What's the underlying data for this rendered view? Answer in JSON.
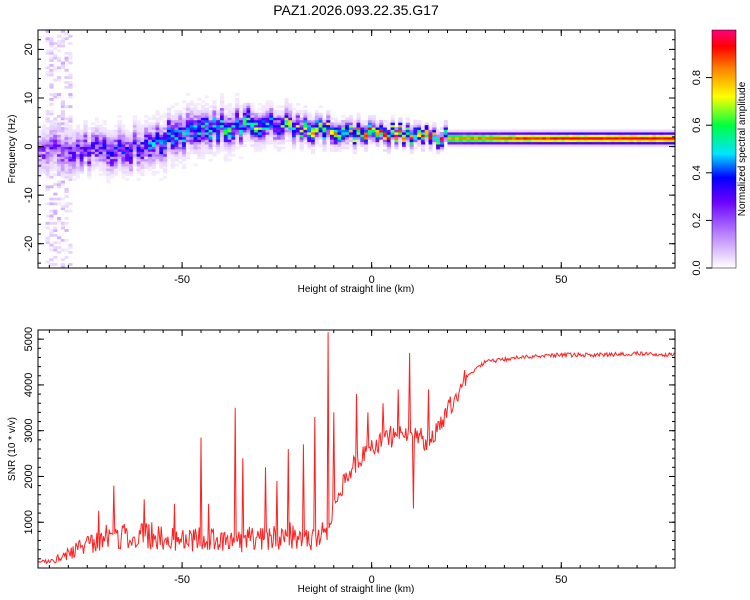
{
  "chart_data": [
    {
      "type": "heatmap",
      "title": "PAZ1.2026.093.22.35.G17",
      "xlabel": "Height of straight line (km)",
      "ylabel": "Frequency (Hz)",
      "xlim": [
        -88,
        80
      ],
      "ylim": [
        -25,
        24
      ],
      "x_ticks": [
        -50,
        0,
        50
      ],
      "x_tick_labels": [
        "-50",
        "0",
        "50"
      ],
      "y_ticks": [
        -20,
        -10,
        0,
        10,
        20
      ],
      "y_tick_labels": [
        "-20",
        "-10",
        "0",
        "10",
        "20"
      ],
      "colorbar": {
        "label": "Normalized spectral amplitude",
        "range": [
          0,
          1
        ],
        "ticks": [
          0.0,
          0.2,
          0.4,
          0.6,
          0.8
        ],
        "tick_labels": [
          "0.0",
          "0.2",
          "0.4",
          "0.6",
          "0.8"
        ],
        "colormap": [
          "#ffffff",
          "#e8d4ff",
          "#b57bff",
          "#6a00ff",
          "#0000ff",
          "#00e5ff",
          "#00ff40",
          "#ffff00",
          "#ff8000",
          "#ff0000",
          "#ff0080"
        ]
      },
      "ridge": {
        "x": [
          -88,
          -80,
          -70,
          -60,
          -50,
          -40,
          -30,
          -20,
          -10,
          0,
          10,
          20,
          30,
          40,
          50,
          60,
          70,
          80
        ],
        "freq": [
          -0.5,
          -1.0,
          -1.5,
          0.0,
          2.5,
          4.0,
          4.5,
          4.0,
          3.0,
          2.5,
          2.0,
          1.5,
          1.5,
          1.5,
          1.5,
          1.5,
          1.5,
          1.5
        ],
        "halfwidth": [
          3.5,
          3.5,
          3.0,
          3.0,
          3.0,
          2.5,
          2.0,
          1.8,
          1.5,
          1.3,
          1.2,
          1.0,
          1.0,
          1.0,
          1.0,
          1.0,
          1.0,
          1.0
        ],
        "amplitude": [
          0.22,
          0.25,
          0.3,
          0.35,
          0.4,
          0.45,
          0.5,
          0.55,
          0.65,
          0.7,
          0.75,
          0.8,
          0.85,
          0.9,
          0.92,
          0.94,
          0.95,
          0.95
        ]
      },
      "noise_column_x": [
        -86,
        -80
      ]
    },
    {
      "type": "line",
      "xlabel": "Height of straight line (km)",
      "ylabel": "SNR (10 * v/v)",
      "xlim": [
        -88,
        80
      ],
      "ylim": [
        0,
        5200
      ],
      "x_ticks": [
        -50,
        0,
        50
      ],
      "x_tick_labels": [
        "-50",
        "0",
        "50"
      ],
      "y_ticks": [
        1000,
        2000,
        3000,
        4000,
        5000
      ],
      "y_tick_labels": [
        "1000",
        "2000",
        "3000",
        "4000",
        "5000"
      ],
      "color": "#ff2020",
      "series": [
        {
          "name": "SNR",
          "x": [
            -88,
            -85,
            -80,
            -75,
            -70,
            -65,
            -60,
            -55,
            -50,
            -45,
            -40,
            -35,
            -30,
            -25,
            -20,
            -15,
            -12,
            -10,
            -5,
            0,
            5,
            10,
            15,
            20,
            25,
            30,
            40,
            50,
            60,
            70,
            80
          ],
          "values": [
            100,
            150,
            300,
            500,
            650,
            650,
            700,
            650,
            550,
            650,
            550,
            550,
            650,
            650,
            700,
            600,
            700,
            1400,
            2200,
            2600,
            2800,
            3000,
            2700,
            3400,
            4200,
            4500,
            4600,
            4650,
            4650,
            4680,
            4650
          ]
        }
      ],
      "spikes": {
        "x": [
          -72,
          -68,
          -60,
          -52,
          -45,
          -43,
          -36,
          -34,
          -28,
          -25,
          -22,
          -18,
          -15,
          -11.5,
          -10,
          -4,
          -1,
          3,
          5,
          7,
          10,
          11,
          15
        ],
        "values": [
          1250,
          1800,
          1500,
          1400,
          2850,
          1400,
          3500,
          2400,
          2200,
          1900,
          2600,
          2700,
          3300,
          5150,
          3400,
          3800,
          3400,
          3600,
          3100,
          3900,
          4700,
          1300,
          3900
        ]
      }
    }
  ]
}
